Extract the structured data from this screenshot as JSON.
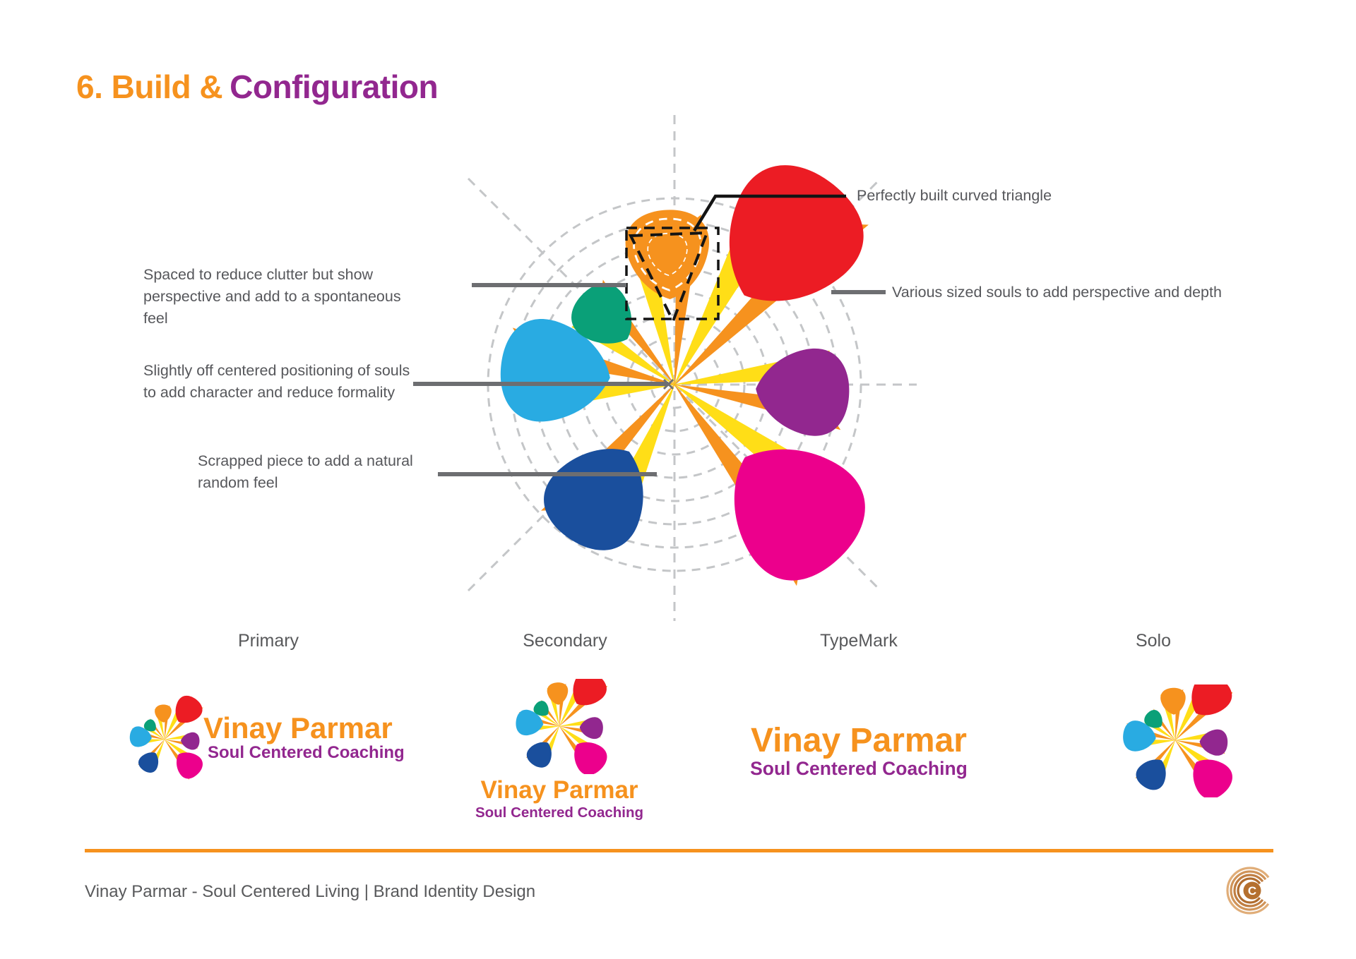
{
  "title": {
    "orange": "6. Build &",
    "purple": "Configuration"
  },
  "annotations": {
    "perfect": "Perfectly built curved triangle",
    "various": "Various sized souls to add perspective and depth",
    "spaced": "Spaced to reduce clutter but show\nperspective and add to a spontaneous feel",
    "off_center": "Slightly off centered positioning of souls\nto add character and reduce formality",
    "scrapped": "Scrapped piece to add a natural\nrandom feel"
  },
  "variants": {
    "primary": {
      "label": "Primary",
      "name": "Vinay Parmar",
      "tagline": "Soul Centered Coaching"
    },
    "secondary": {
      "label": "Secondary",
      "name": "Vinay Parmar",
      "tagline": "Soul Centered Coaching"
    },
    "typemark": {
      "label": "TypeMark",
      "name": "Vinay Parmar",
      "tagline": "Soul Centered Coaching"
    },
    "solo": {
      "label": "Solo"
    }
  },
  "footer": {
    "text": "Vinay Parmar - Soul Centered Living | Brand Identity Design",
    "monogram": "C"
  },
  "palette": {
    "orange": "#F6921E",
    "yellow": "#FFDE17",
    "red": "#EC1C24",
    "purple": "#92278F",
    "magenta": "#EC008C",
    "blue": "#1A4F9D",
    "cyan": "#29ABE2",
    "green": "#0AA078",
    "text_gray": "#58595B",
    "line_gray": "#6D6E71",
    "grid_gray": "#C4C6C8",
    "copper": "#B5702F"
  }
}
